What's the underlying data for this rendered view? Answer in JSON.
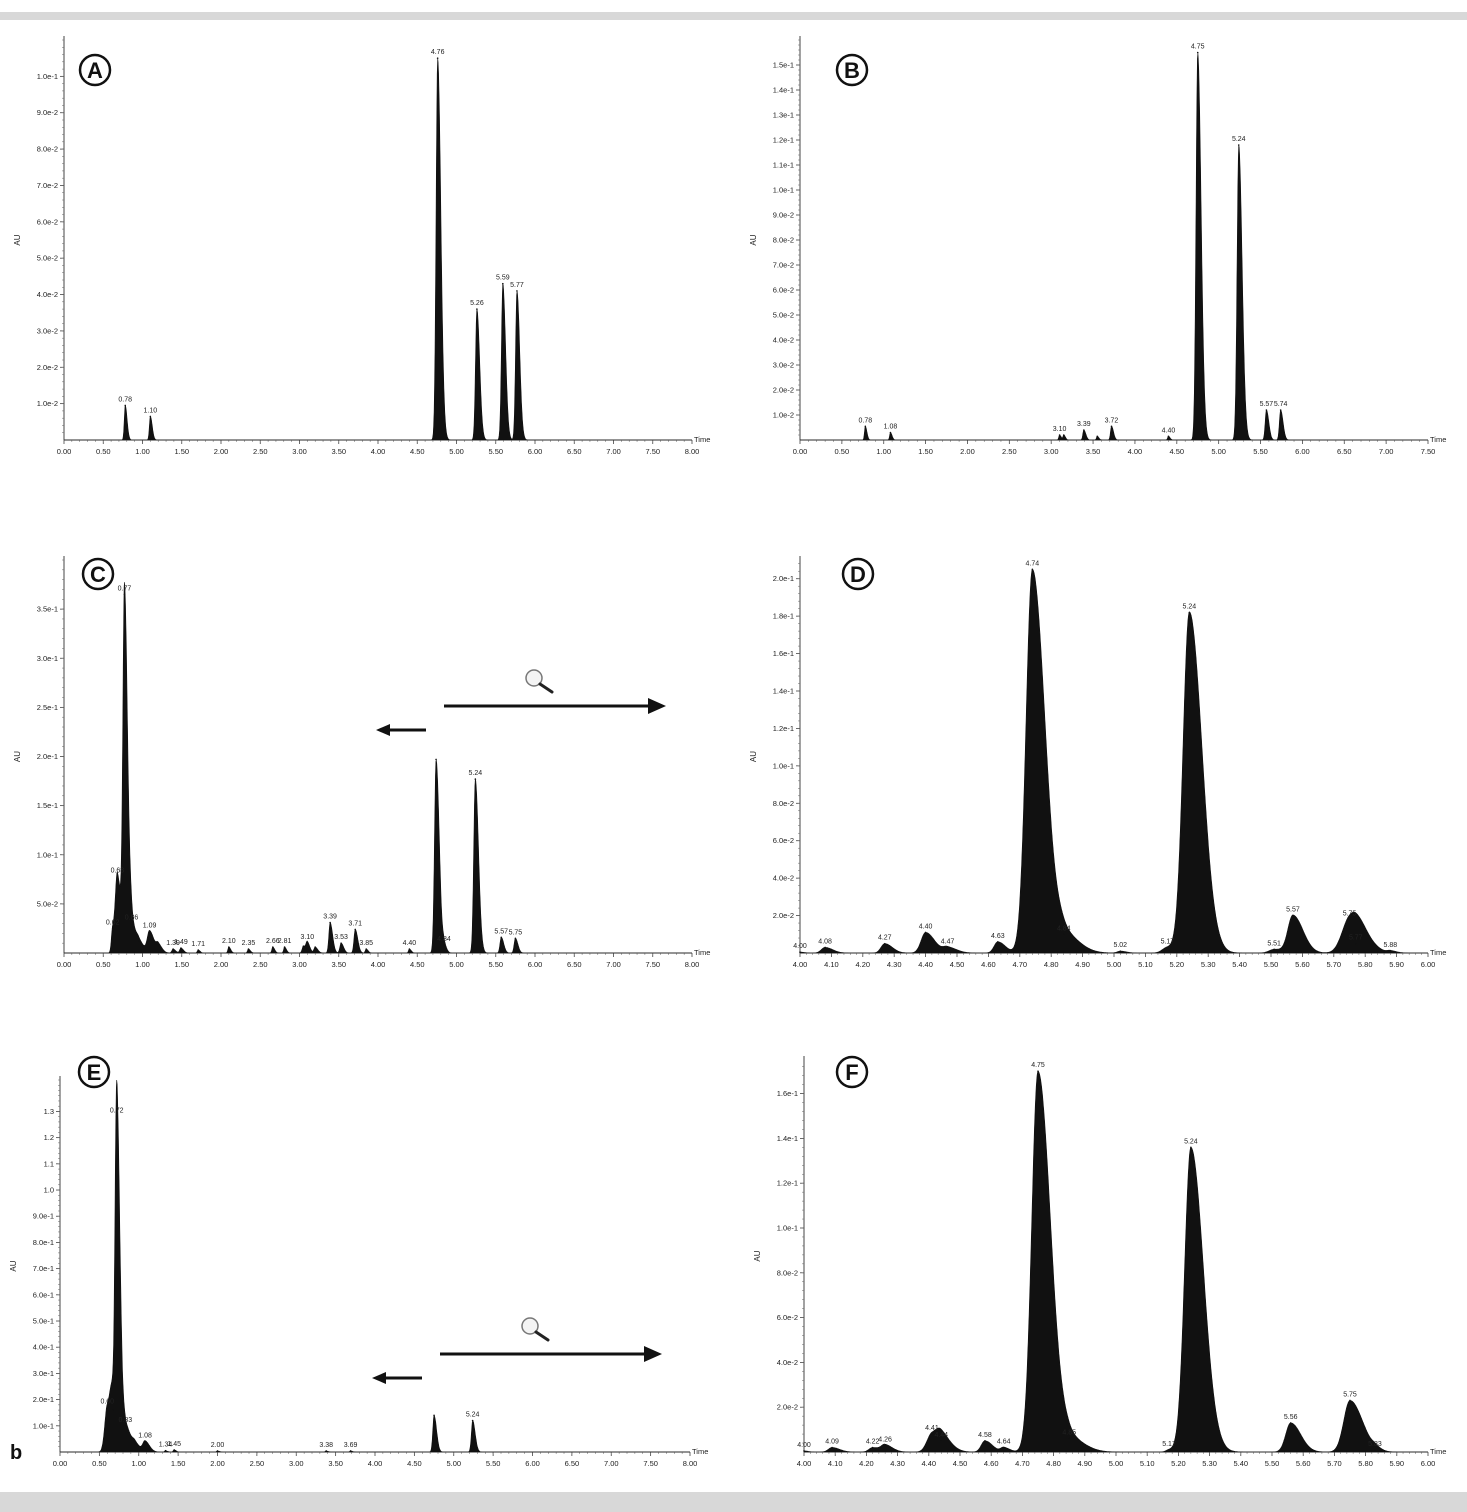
{
  "figure_label": "b",
  "chart_data": [
    {
      "panel": "A",
      "type": "area",
      "ylabel": "AU",
      "xlabel": "Time",
      "xlim": [
        0,
        8.0
      ],
      "xticks": [
        0.0,
        0.5,
        1.0,
        1.5,
        2.0,
        2.5,
        3.0,
        3.5,
        4.0,
        4.5,
        5.0,
        5.5,
        6.0,
        6.5,
        7.0,
        7.5,
        8.0
      ],
      "ylim": [
        0,
        0.11
      ],
      "yticks": [
        0.01,
        0.02,
        0.03,
        0.04,
        0.05,
        0.06,
        0.07,
        0.08,
        0.09,
        0.1
      ],
      "ytick_labels": [
        "1.0e-2",
        "2.0e-2",
        "3.0e-2",
        "4.0e-2",
        "5.0e-2",
        "6.0e-2",
        "7.0e-2",
        "8.0e-2",
        "9.0e-2",
        "1.0e-1"
      ],
      "peaks": [
        {
          "t": 0.78,
          "h": 0.0095,
          "w": 0.015,
          "label": "0.78"
        },
        {
          "t": 1.1,
          "h": 0.0065,
          "w": 0.015,
          "label": "1.10"
        },
        {
          "t": 4.76,
          "h": 0.105,
          "w": 0.025,
          "label": "4.76"
        },
        {
          "t": 5.26,
          "h": 0.036,
          "w": 0.022,
          "label": "5.26"
        },
        {
          "t": 5.59,
          "h": 0.043,
          "w": 0.022,
          "label": "5.59"
        },
        {
          "t": 5.77,
          "h": 0.041,
          "w": 0.022,
          "label": "5.77"
        }
      ]
    },
    {
      "panel": "B",
      "type": "area",
      "ylabel": "AU",
      "xlabel": "Time",
      "xlim": [
        0,
        7.5
      ],
      "xticks": [
        0.0,
        0.5,
        1.0,
        1.5,
        2.0,
        2.5,
        3.0,
        3.5,
        4.0,
        4.5,
        5.0,
        5.5,
        6.0,
        6.5,
        7.0,
        7.5
      ],
      "ylim": [
        0,
        0.16
      ],
      "yticks": [
        0.01,
        0.02,
        0.03,
        0.04,
        0.05,
        0.06,
        0.07,
        0.08,
        0.09,
        0.1,
        0.11,
        0.12,
        0.13,
        0.14,
        0.15
      ],
      "ytick_labels": [
        "1.0e-2",
        "2.0e-2",
        "3.0e-2",
        "4.0e-2",
        "5.0e-2",
        "6.0e-2",
        "7.0e-2",
        "8.0e-2",
        "9.0e-2",
        "1.0e-1",
        "1.1e-1",
        "1.2e-1",
        "1.3e-1",
        "1.4e-1",
        "1.5e-1"
      ],
      "peaks": [
        {
          "t": 0.78,
          "h": 0.0055,
          "w": 0.012,
          "label": "0.78"
        },
        {
          "t": 1.08,
          "h": 0.003,
          "w": 0.012,
          "label": "1.08"
        },
        {
          "t": 3.1,
          "h": 0.002,
          "w": 0.012,
          "label": "3.10"
        },
        {
          "t": 3.15,
          "h": 0.002,
          "w": 0.012,
          "label": ""
        },
        {
          "t": 3.39,
          "h": 0.004,
          "w": 0.015,
          "label": "3.39"
        },
        {
          "t": 3.55,
          "h": 0.0015,
          "w": 0.012,
          "label": ""
        },
        {
          "t": 3.72,
          "h": 0.0055,
          "w": 0.015,
          "label": "3.72"
        },
        {
          "t": 4.4,
          "h": 0.0015,
          "w": 0.012,
          "label": "4.40"
        },
        {
          "t": 4.75,
          "h": 0.155,
          "w": 0.025,
          "label": "4.75"
        },
        {
          "t": 5.24,
          "h": 0.118,
          "w": 0.025,
          "label": "5.24"
        },
        {
          "t": 5.57,
          "h": 0.012,
          "w": 0.018,
          "label": "5.57"
        },
        {
          "t": 5.74,
          "h": 0.012,
          "w": 0.018,
          "label": "5.74"
        }
      ]
    },
    {
      "panel": "C",
      "type": "area",
      "ylabel": "AU",
      "xlabel": "Time",
      "xlim": [
        0,
        8.0
      ],
      "xticks": [
        0.0,
        0.5,
        1.0,
        1.5,
        2.0,
        2.5,
        3.0,
        3.5,
        4.0,
        4.5,
        5.0,
        5.5,
        6.0,
        6.5,
        7.0,
        7.5,
        8.0
      ],
      "ylim": [
        0,
        0.4
      ],
      "yticks": [
        0.05,
        0.1,
        0.15,
        0.2,
        0.25,
        0.3,
        0.35
      ],
      "ytick_labels": [
        "5.0e-2",
        "1.0e-1",
        "1.5e-1",
        "2.0e-1",
        "2.5e-1",
        "3.0e-1",
        "3.5e-1"
      ],
      "zoom_arrows": true,
      "peaks": [
        {
          "t": 0.62,
          "h": 0.025,
          "w": 0.02,
          "label": "0.62"
        },
        {
          "t": 0.68,
          "h": 0.078,
          "w": 0.03,
          "label": "0.68"
        },
        {
          "t": 0.77,
          "h": 0.365,
          "w": 0.025,
          "label": "0.77"
        },
        {
          "t": 0.86,
          "h": 0.03,
          "w": 0.03,
          "label": "0.86"
        },
        {
          "t": 0.95,
          "h": 0.012,
          "w": 0.04,
          "label": ""
        },
        {
          "t": 1.09,
          "h": 0.022,
          "w": 0.035,
          "label": "1.09"
        },
        {
          "t": 1.2,
          "h": 0.008,
          "w": 0.03,
          "label": ""
        },
        {
          "t": 1.39,
          "h": 0.004,
          "w": 0.02,
          "label": "1.39"
        },
        {
          "t": 1.49,
          "h": 0.005,
          "w": 0.02,
          "label": "1.49"
        },
        {
          "t": 1.71,
          "h": 0.003,
          "w": 0.015,
          "label": "1.71"
        },
        {
          "t": 2.1,
          "h": 0.006,
          "w": 0.015,
          "label": "2.10"
        },
        {
          "t": 2.35,
          "h": 0.004,
          "w": 0.015,
          "label": "2.35"
        },
        {
          "t": 2.66,
          "h": 0.006,
          "w": 0.015,
          "label": "2.66"
        },
        {
          "t": 2.81,
          "h": 0.006,
          "w": 0.015,
          "label": "2.81"
        },
        {
          "t": 3.05,
          "h": 0.007,
          "w": 0.02,
          "label": ""
        },
        {
          "t": 3.1,
          "h": 0.01,
          "w": 0.02,
          "label": "3.10"
        },
        {
          "t": 3.2,
          "h": 0.006,
          "w": 0.02,
          "label": ""
        },
        {
          "t": 3.39,
          "h": 0.031,
          "w": 0.02,
          "label": "3.39"
        },
        {
          "t": 3.53,
          "h": 0.01,
          "w": 0.02,
          "label": "3.53"
        },
        {
          "t": 3.71,
          "h": 0.024,
          "w": 0.02,
          "label": "3.71"
        },
        {
          "t": 3.85,
          "h": 0.004,
          "w": 0.015,
          "label": "3.85"
        },
        {
          "t": 4.4,
          "h": 0.004,
          "w": 0.015,
          "label": "4.40"
        },
        {
          "t": 4.74,
          "h": 0.197,
          "w": 0.025,
          "label": ""
        },
        {
          "t": 4.84,
          "h": 0.008,
          "w": 0.02,
          "label": "4.84"
        },
        {
          "t": 5.24,
          "h": 0.177,
          "w": 0.025,
          "label": "5.24"
        },
        {
          "t": 5.57,
          "h": 0.016,
          "w": 0.02,
          "label": "5.57"
        },
        {
          "t": 5.75,
          "h": 0.015,
          "w": 0.02,
          "label": "5.75"
        }
      ]
    },
    {
      "panel": "D",
      "type": "area",
      "ylabel": "AU",
      "xlabel": "Time",
      "xlim": [
        4.0,
        6.0
      ],
      "xticks": [
        4.0,
        4.1,
        4.2,
        4.3,
        4.4,
        4.5,
        4.6,
        4.7,
        4.8,
        4.9,
        5.0,
        5.1,
        5.2,
        5.3,
        5.4,
        5.5,
        5.6,
        5.7,
        5.8,
        5.9,
        6.0
      ],
      "ylim": [
        0,
        0.21
      ],
      "yticks": [
        0.02,
        0.04,
        0.06,
        0.08,
        0.1,
        0.12,
        0.14,
        0.16,
        0.18,
        0.2
      ],
      "ytick_labels": [
        "2.0e-2",
        "4.0e-2",
        "6.0e-2",
        "8.0e-2",
        "1.0e-1",
        "1.2e-1",
        "1.4e-1",
        "1.6e-1",
        "1.8e-1",
        "2.0e-1"
      ],
      "peaks": [
        {
          "t": 4.0,
          "h": 0.0005,
          "w": 0.008,
          "label": "4.00"
        },
        {
          "t": 4.08,
          "h": 0.003,
          "w": 0.015,
          "label": "4.08"
        },
        {
          "t": 4.27,
          "h": 0.005,
          "w": 0.015,
          "label": "4.27"
        },
        {
          "t": 4.4,
          "h": 0.011,
          "w": 0.018,
          "label": "4.40"
        },
        {
          "t": 4.47,
          "h": 0.003,
          "w": 0.018,
          "label": "4.47"
        },
        {
          "t": 4.63,
          "h": 0.006,
          "w": 0.015,
          "label": "4.63"
        },
        {
          "t": 4.74,
          "h": 0.205,
          "w": 0.025,
          "label": "4.74"
        },
        {
          "t": 4.84,
          "h": 0.01,
          "w": 0.03,
          "label": "4.84"
        },
        {
          "t": 5.02,
          "h": 0.001,
          "w": 0.012,
          "label": "5.02"
        },
        {
          "t": 5.17,
          "h": 0.003,
          "w": 0.02,
          "label": "5.17"
        },
        {
          "t": 5.24,
          "h": 0.182,
          "w": 0.025,
          "label": "5.24"
        },
        {
          "t": 5.51,
          "h": 0.002,
          "w": 0.02,
          "label": "5.51"
        },
        {
          "t": 5.57,
          "h": 0.02,
          "w": 0.02,
          "label": "5.57"
        },
        {
          "t": 5.75,
          "h": 0.018,
          "w": 0.03,
          "label": "5.75"
        },
        {
          "t": 5.77,
          "h": 0.005,
          "w": 0.02,
          "label": "5.77"
        },
        {
          "t": 5.88,
          "h": 0.001,
          "w": 0.012,
          "label": "5.88"
        }
      ]
    },
    {
      "panel": "E",
      "type": "area",
      "ylabel": "AU",
      "xlabel": "Time",
      "xlim": [
        0,
        8.0
      ],
      "xticks": [
        0.0,
        0.5,
        1.0,
        1.5,
        2.0,
        2.5,
        3.0,
        3.5,
        4.0,
        4.5,
        5.0,
        5.5,
        6.0,
        6.5,
        7.0,
        7.5,
        8.0
      ],
      "ylim": [
        0,
        1.42
      ],
      "yticks": [
        0.1,
        0.2,
        0.3,
        0.4,
        0.5,
        0.6,
        0.7,
        0.8,
        0.9,
        1.0,
        1.1,
        1.2,
        1.3
      ],
      "ytick_labels": [
        "1.0e-1",
        "2.0e-1",
        "3.0e-1",
        "4.0e-1",
        "5.0e-1",
        "6.0e-1",
        "7.0e-1",
        "8.0e-1",
        "9.0e-1",
        "1.0",
        "1.1",
        "1.2",
        "1.3"
      ],
      "zoom_arrows": true,
      "peaks": [
        {
          "t": 0.6,
          "h": 0.17,
          "w": 0.04,
          "label": "0.60"
        },
        {
          "t": 0.67,
          "h": 0.16,
          "w": 0.04,
          "label": ""
        },
        {
          "t": 0.72,
          "h": 1.28,
          "w": 0.025,
          "label": "0.72"
        },
        {
          "t": 0.83,
          "h": 0.1,
          "w": 0.04,
          "label": "0.83"
        },
        {
          "t": 0.95,
          "h": 0.03,
          "w": 0.04,
          "label": ""
        },
        {
          "t": 1.08,
          "h": 0.04,
          "w": 0.035,
          "label": "1.08"
        },
        {
          "t": 1.34,
          "h": 0.005,
          "w": 0.015,
          "label": "1.34"
        },
        {
          "t": 1.45,
          "h": 0.008,
          "w": 0.015,
          "label": "1.45"
        },
        {
          "t": 2.0,
          "h": 0.004,
          "w": 0.015,
          "label": "2.00"
        },
        {
          "t": 3.38,
          "h": 0.004,
          "w": 0.015,
          "label": "3.38"
        },
        {
          "t": 3.69,
          "h": 0.004,
          "w": 0.015,
          "label": "3.69"
        },
        {
          "t": 4.75,
          "h": 0.14,
          "w": 0.02,
          "label": ""
        },
        {
          "t": 5.24,
          "h": 0.12,
          "w": 0.02,
          "label": "5.24"
        }
      ]
    },
    {
      "panel": "F",
      "type": "area",
      "ylabel": "AU",
      "xlabel": "Time",
      "xlim": [
        4.0,
        6.0
      ],
      "xticks": [
        4.0,
        4.1,
        4.2,
        4.3,
        4.4,
        4.5,
        4.6,
        4.7,
        4.8,
        4.9,
        5.0,
        5.1,
        5.2,
        5.3,
        5.4,
        5.5,
        5.6,
        5.7,
        5.8,
        5.9,
        6.0
      ],
      "ylim": [
        0,
        0.175
      ],
      "yticks": [
        0.02,
        0.04,
        0.06,
        0.08,
        0.1,
        0.12,
        0.14,
        0.16
      ],
      "ytick_labels": [
        "2.0e-2",
        "4.0e-2",
        "6.0e-2",
        "8.0e-2",
        "1.0e-1",
        "1.2e-1",
        "1.4e-1",
        "1.6e-1"
      ],
      "peaks": [
        {
          "t": 4.0,
          "h": 0.0005,
          "w": 0.008,
          "label": "4.00"
        },
        {
          "t": 4.09,
          "h": 0.002,
          "w": 0.015,
          "label": "4.09"
        },
        {
          "t": 4.22,
          "h": 0.002,
          "w": 0.015,
          "label": "4.22"
        },
        {
          "t": 4.26,
          "h": 0.003,
          "w": 0.015,
          "label": "4.26"
        },
        {
          "t": 4.41,
          "h": 0.008,
          "w": 0.02,
          "label": "4.41"
        },
        {
          "t": 4.44,
          "h": 0.005,
          "w": 0.02,
          "label": "4.44"
        },
        {
          "t": 4.58,
          "h": 0.005,
          "w": 0.015,
          "label": "4.58"
        },
        {
          "t": 4.64,
          "h": 0.002,
          "w": 0.012,
          "label": "4.64"
        },
        {
          "t": 4.75,
          "h": 0.17,
          "w": 0.025,
          "label": "4.75"
        },
        {
          "t": 4.85,
          "h": 0.006,
          "w": 0.03,
          "label": "4.85"
        },
        {
          "t": 5.17,
          "h": 0.001,
          "w": 0.012,
          "label": "5.17"
        },
        {
          "t": 5.24,
          "h": 0.136,
          "w": 0.025,
          "label": "5.24"
        },
        {
          "t": 5.56,
          "h": 0.013,
          "w": 0.02,
          "label": "5.56"
        },
        {
          "t": 5.75,
          "h": 0.023,
          "w": 0.025,
          "label": "5.75"
        },
        {
          "t": 5.83,
          "h": 0.001,
          "w": 0.012,
          "label": "5.83"
        }
      ]
    }
  ]
}
